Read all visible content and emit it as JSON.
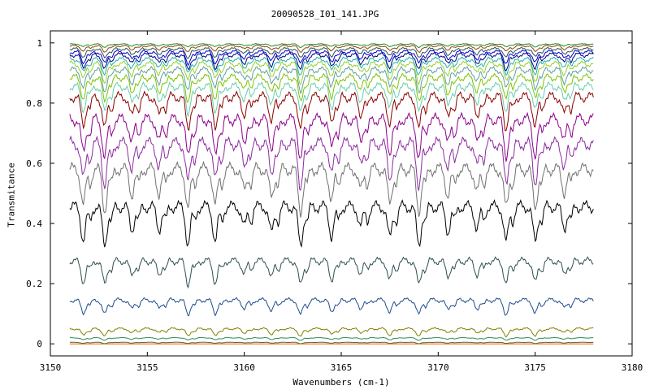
{
  "chart_data": {
    "type": "line",
    "title": "20090528_I01_141.JPG",
    "xlabel": "Wavenumbers (cm-1)",
    "ylabel": "Transmitance",
    "xlim": [
      3150,
      3180
    ],
    "ylim": [
      -0.04,
      1.04
    ],
    "x_ticks": [
      "3150",
      "3155",
      "3160",
      "3165",
      "3170",
      "3175",
      "3180"
    ],
    "y_ticks": [
      "0",
      "0.2",
      "0.4",
      "0.6",
      "0.8",
      "1"
    ],
    "x_range_data": [
      3151,
      3178
    ],
    "grid": false,
    "legend": "none",
    "absorption_lines_cm1": [
      3151.7,
      3152.8,
      3154.2,
      3155.6,
      3157.1,
      3158.5,
      3160.0,
      3161.4,
      3162.9,
      3164.5,
      3166.0,
      3167.5,
      3169.0,
      3170.5,
      3172.0,
      3173.5,
      3175.0,
      3176.5
    ],
    "series": [
      {
        "color": "#ff5000",
        "baseline": 0.0,
        "depth": 0.0
      },
      {
        "color": "#556b2f",
        "baseline": 0.005,
        "depth": 0.004
      },
      {
        "color": "#2e8b57",
        "baseline": 0.02,
        "depth": 0.008
      },
      {
        "color": "#808000",
        "baseline": 0.05,
        "depth": 0.025
      },
      {
        "color": "#1e4d8c",
        "baseline": 0.145,
        "depth": 0.05
      },
      {
        "color": "#2f4f4f",
        "baseline": 0.275,
        "depth": 0.08
      },
      {
        "color": "#000000",
        "baseline": 0.455,
        "depth": 0.13
      },
      {
        "color": "#707070",
        "baseline": 0.58,
        "depth": 0.14
      },
      {
        "color": "#8b2ca0",
        "baseline": 0.665,
        "depth": 0.14
      },
      {
        "color": "#8b008b",
        "baseline": 0.745,
        "depth": 0.13
      },
      {
        "color": "#8b0000",
        "baseline": 0.82,
        "depth": 0.11
      },
      {
        "color": "#66cdaa",
        "baseline": 0.855,
        "depth": 0.09
      },
      {
        "color": "#7cc400",
        "baseline": 0.885,
        "depth": 0.08
      },
      {
        "color": "#5f9ea0",
        "baseline": 0.91,
        "depth": 0.07
      },
      {
        "color": "#9acd32",
        "baseline": 0.93,
        "depth": 0.06
      },
      {
        "color": "#20b2aa",
        "baseline": 0.945,
        "depth": 0.05
      },
      {
        "color": "#000080",
        "baseline": 0.96,
        "depth": 0.05
      },
      {
        "color": "#0000cd",
        "baseline": 0.97,
        "depth": 0.04
      },
      {
        "color": "#2f4f4f",
        "baseline": 0.98,
        "depth": 0.03
      },
      {
        "color": "#8b4513",
        "baseline": 0.99,
        "depth": 0.02
      },
      {
        "color": "#228b22",
        "baseline": 0.996,
        "depth": 0.01
      }
    ]
  }
}
